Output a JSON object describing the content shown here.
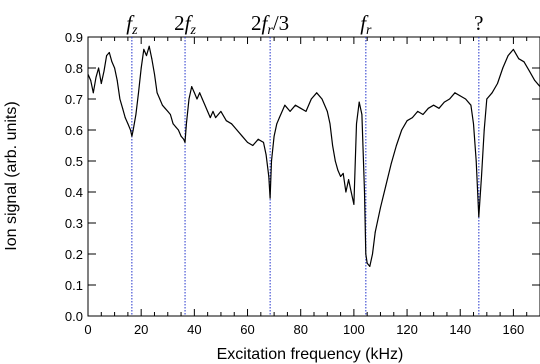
{
  "chart_data": {
    "type": "line",
    "xlabel": "Excitation frequency (kHz)",
    "ylabel": "Ion signal (arb. units)",
    "xlim": [
      0,
      170
    ],
    "ylim": [
      0,
      0.9
    ],
    "x_ticks": [
      0,
      20,
      40,
      60,
      80,
      100,
      120,
      140,
      160
    ],
    "y_ticks": [
      0.0,
      0.1,
      0.2,
      0.3,
      0.4,
      0.5,
      0.6,
      0.7,
      0.8,
      0.9
    ],
    "x_tick_labels": [
      "0",
      "20",
      "40",
      "60",
      "80",
      "100",
      "120",
      "140",
      "160"
    ],
    "y_tick_labels": [
      "0.0",
      "0.1",
      "0.2",
      "0.3",
      "0.4",
      "0.5",
      "0.6",
      "0.7",
      "0.8",
      "0.9"
    ],
    "grid": false,
    "colors": {
      "trace": "#000000",
      "marker_line": "#2233cc"
    },
    "markers": [
      {
        "x": 16.5,
        "label": {
          "pre": "",
          "main": "f",
          "sub": "z",
          "post": ""
        }
      },
      {
        "x": 36.5,
        "label": {
          "pre": "2",
          "main": "f",
          "sub": "z",
          "post": ""
        }
      },
      {
        "x": 68.5,
        "label": {
          "pre": "2",
          "main": "f",
          "sub": "r",
          "post": "/3"
        }
      },
      {
        "x": 104.5,
        "label": {
          "pre": "",
          "main": "f",
          "sub": "r",
          "post": ""
        }
      },
      {
        "x": 147.0,
        "label": {
          "pre": "",
          "main": "?",
          "sub": "",
          "post": ""
        }
      }
    ],
    "series": [
      {
        "x": [
          0,
          1,
          2,
          3,
          4,
          5,
          6,
          7,
          8,
          9,
          10,
          11,
          12,
          13,
          14,
          15,
          16,
          16.5,
          17,
          18,
          19,
          20,
          21,
          22,
          23,
          24,
          25,
          26,
          27,
          28,
          29,
          30,
          31,
          32,
          33,
          34,
          35,
          36,
          36.5,
          37,
          38,
          39,
          40,
          41,
          42,
          43,
          44,
          45,
          46,
          47,
          48,
          50,
          52,
          54,
          56,
          58,
          60,
          62,
          64,
          66,
          67,
          68,
          68.5,
          69,
          70,
          71,
          72,
          74,
          76,
          78,
          80,
          82,
          84,
          86,
          88,
          90,
          91,
          92,
          93,
          94,
          95,
          96,
          97,
          98,
          99,
          100,
          101,
          102,
          103,
          104,
          104.5,
          105,
          106,
          107,
          108,
          110,
          112,
          114,
          116,
          118,
          120,
          122,
          124,
          126,
          128,
          130,
          132,
          134,
          136,
          138,
          140,
          142,
          144,
          145,
          146,
          147,
          148,
          149,
          150,
          152,
          154,
          156,
          158,
          160,
          162,
          164,
          166,
          168,
          170
        ],
        "y": [
          0.78,
          0.76,
          0.72,
          0.77,
          0.8,
          0.75,
          0.79,
          0.84,
          0.85,
          0.82,
          0.8,
          0.76,
          0.7,
          0.67,
          0.64,
          0.62,
          0.6,
          0.58,
          0.6,
          0.65,
          0.72,
          0.8,
          0.86,
          0.84,
          0.87,
          0.83,
          0.78,
          0.72,
          0.7,
          0.68,
          0.67,
          0.66,
          0.65,
          0.62,
          0.61,
          0.6,
          0.58,
          0.57,
          0.56,
          0.62,
          0.7,
          0.74,
          0.72,
          0.7,
          0.72,
          0.7,
          0.68,
          0.66,
          0.64,
          0.66,
          0.64,
          0.66,
          0.63,
          0.62,
          0.6,
          0.58,
          0.56,
          0.55,
          0.57,
          0.56,
          0.52,
          0.45,
          0.38,
          0.5,
          0.58,
          0.62,
          0.64,
          0.68,
          0.66,
          0.68,
          0.67,
          0.66,
          0.7,
          0.72,
          0.7,
          0.66,
          0.62,
          0.55,
          0.5,
          0.47,
          0.45,
          0.46,
          0.4,
          0.44,
          0.4,
          0.36,
          0.62,
          0.69,
          0.65,
          0.4,
          0.2,
          0.17,
          0.16,
          0.2,
          0.27,
          0.35,
          0.42,
          0.49,
          0.55,
          0.6,
          0.63,
          0.64,
          0.66,
          0.65,
          0.67,
          0.68,
          0.67,
          0.69,
          0.7,
          0.72,
          0.71,
          0.7,
          0.68,
          0.62,
          0.5,
          0.32,
          0.45,
          0.6,
          0.7,
          0.72,
          0.75,
          0.8,
          0.84,
          0.86,
          0.83,
          0.82,
          0.79,
          0.76,
          0.74
        ]
      }
    ]
  }
}
